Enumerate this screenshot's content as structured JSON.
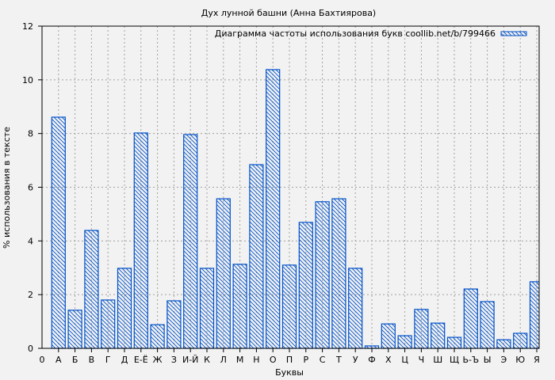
{
  "chart_data": {
    "type": "bar",
    "title": "Дух лунной башни (Анна Бахтиярова)",
    "xlabel": "Буквы",
    "ylabel": "% использования в тексте",
    "ylim": [
      0,
      12
    ],
    "yticks": [
      0,
      2,
      4,
      6,
      8,
      10,
      12
    ],
    "grid": true,
    "legend": {
      "label": "Диаграмма частоты использования букв coollib.net/b/799466",
      "placement": "top-right"
    },
    "x_origin_label": "0",
    "categories": [
      "А",
      "Б",
      "В",
      "Г",
      "Д",
      "Е-Ё",
      "Ж",
      "З",
      "И-Й",
      "К",
      "Л",
      "М",
      "Н",
      "О",
      "П",
      "Р",
      "С",
      "Т",
      "У",
      "Ф",
      "Х",
      "Ц",
      "Ч",
      "Ш",
      "Щ",
      "Ь-Ъ",
      "Ы",
      "Э",
      "Ю",
      "Я"
    ],
    "values": [
      8.61,
      1.42,
      4.39,
      1.8,
      2.98,
      8.02,
      0.88,
      1.77,
      7.96,
      2.98,
      5.57,
      3.13,
      6.84,
      10.38,
      3.1,
      4.69,
      5.46,
      5.57,
      2.98,
      0.09,
      0.91,
      0.47,
      1.45,
      0.94,
      0.41,
      2.21,
      1.74,
      0.32,
      0.56,
      2.48
    ],
    "colors": {
      "bar": "#0050c8",
      "grid": "#a0a0a0",
      "background": "#f2f2f2"
    }
  }
}
